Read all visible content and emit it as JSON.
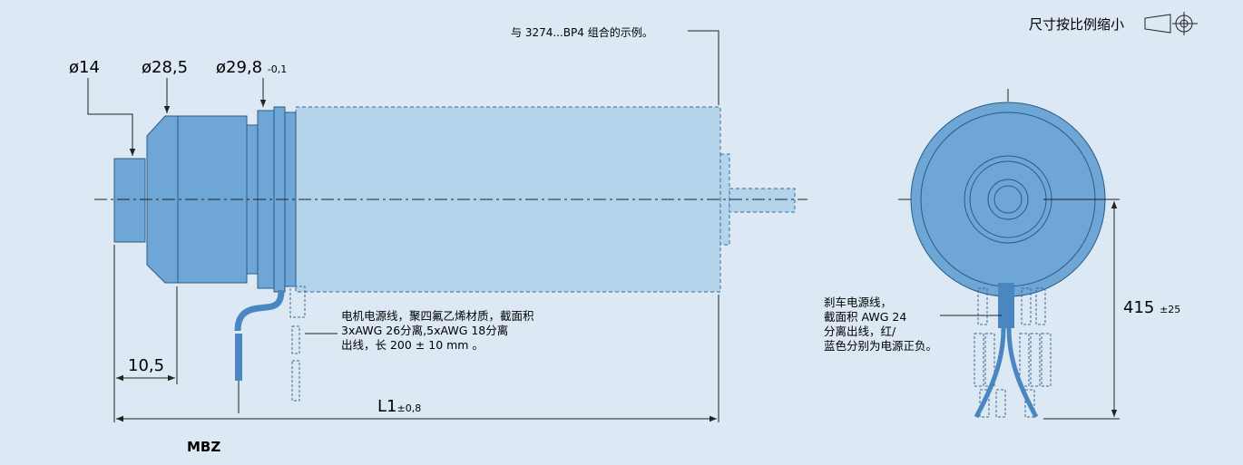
{
  "scale_note": "尺寸按比例缩小",
  "note_combination": "与 3274...BP4 组合的示例。",
  "dims": {
    "d14": "ø14",
    "d28_5": "ø28,5",
    "d29_8": "ø29,8",
    "d29_8_tol": "-0,1",
    "len_10_5": "10,5",
    "L1": "L1",
    "L1_tol": "±0,8",
    "len_415": "415",
    "len_415_tol": "±25"
  },
  "motor_cable_note": "电机电源线，聚四氟乙烯材质，截面积\n3xAWG 26分离,5xAWG 18分离\n出线，长 200 ± 10 mm 。",
  "brake_cable_note": "刹车电源线，\n截面积 AWG 24\n分离出线，红/\n蓝色分别为电源正负。",
  "model_label": "MBZ",
  "colors": {
    "background": "#dce8f4",
    "motor_body": "#6ea7d6",
    "gearbox_body": "#b4d4ec",
    "line": "#222222"
  }
}
